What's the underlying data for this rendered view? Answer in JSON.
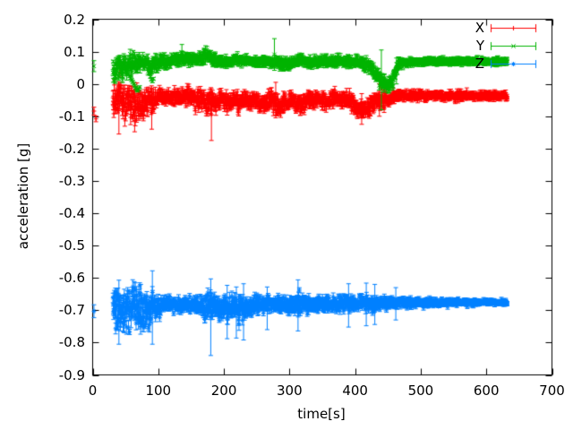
{
  "figure": {
    "background": "#ffffff",
    "text_color": "#000000",
    "axis_color": "#000000"
  },
  "chart_data": {
    "type": "scatter",
    "style": "points-with-errorbars",
    "title": "",
    "xlabel": "time[s]",
    "ylabel": "acceleration [g]",
    "xlim": [
      0,
      700
    ],
    "ylim": [
      -0.9,
      0.2
    ],
    "grid": "off",
    "x_ticks": [
      {
        "v": 0,
        "label": "0"
      },
      {
        "v": 100,
        "label": "100"
      },
      {
        "v": 200,
        "label": "200"
      },
      {
        "v": 300,
        "label": "300"
      },
      {
        "v": 400,
        "label": "400"
      },
      {
        "v": 500,
        "label": "500"
      },
      {
        "v": 600,
        "label": "600"
      },
      {
        "v": 700,
        "label": "700"
      }
    ],
    "y_ticks": [
      {
        "v": 0.2,
        "label": "0.2"
      },
      {
        "v": 0.1,
        "label": "0.1"
      },
      {
        "v": 0,
        "label": "0"
      },
      {
        "v": -0.1,
        "label": "-0.1"
      },
      {
        "v": -0.2,
        "label": "-0.2"
      },
      {
        "v": -0.3,
        "label": "-0.3"
      },
      {
        "v": -0.4,
        "label": "-0.4"
      },
      {
        "v": -0.5,
        "label": "-0.5"
      },
      {
        "v": -0.6,
        "label": "-0.6"
      },
      {
        "v": -0.7,
        "label": "-0.7"
      },
      {
        "v": -0.8,
        "label": "-0.8"
      },
      {
        "v": -0.9,
        "label": "-0.9"
      }
    ],
    "legend": {
      "position": "top-right",
      "box": false
    },
    "series": [
      {
        "name": "X",
        "color": "#ff0000",
        "marker": "plus",
        "seed": 11,
        "t_start": 31,
        "t_end": 632,
        "initial_points": [
          {
            "t": 2,
            "y": -0.084,
            "err": 0.012
          },
          {
            "t": 5,
            "y": -0.108,
            "err": 0.009
          }
        ],
        "envelope": [
          [
            31,
            -0.05,
            0.062
          ],
          [
            38,
            -0.045,
            0.07
          ],
          [
            44,
            -0.035,
            0.068
          ],
          [
            50,
            -0.06,
            0.06
          ],
          [
            57,
            -0.045,
            0.063
          ],
          [
            63,
            -0.055,
            0.065
          ],
          [
            70,
            -0.06,
            0.062
          ],
          [
            78,
            -0.055,
            0.06
          ],
          [
            85,
            -0.05,
            0.055
          ],
          [
            92,
            -0.048,
            0.045
          ],
          [
            98,
            -0.042,
            0.03
          ],
          [
            110,
            -0.04,
            0.026
          ],
          [
            125,
            -0.042,
            0.026
          ],
          [
            140,
            -0.04,
            0.028
          ],
          [
            150,
            -0.038,
            0.032
          ],
          [
            158,
            -0.05,
            0.038
          ],
          [
            165,
            -0.045,
            0.034
          ],
          [
            172,
            -0.055,
            0.038
          ],
          [
            181,
            -0.055,
            0.04
          ],
          [
            188,
            -0.052,
            0.036
          ],
          [
            196,
            -0.048,
            0.03
          ],
          [
            205,
            -0.058,
            0.036
          ],
          [
            213,
            -0.052,
            0.032
          ],
          [
            222,
            -0.06,
            0.038
          ],
          [
            230,
            -0.05,
            0.032
          ],
          [
            240,
            -0.055,
            0.034
          ],
          [
            248,
            -0.048,
            0.03
          ],
          [
            256,
            -0.062,
            0.038
          ],
          [
            264,
            -0.055,
            0.034
          ],
          [
            272,
            -0.05,
            0.032
          ],
          [
            280,
            -0.066,
            0.04
          ],
          [
            288,
            -0.07,
            0.04
          ],
          [
            296,
            -0.06,
            0.036
          ],
          [
            304,
            -0.052,
            0.03
          ],
          [
            312,
            -0.066,
            0.038
          ],
          [
            320,
            -0.06,
            0.034
          ],
          [
            328,
            -0.048,
            0.028
          ],
          [
            336,
            -0.052,
            0.03
          ],
          [
            345,
            -0.048,
            0.028
          ],
          [
            355,
            -0.052,
            0.03
          ],
          [
            365,
            -0.05,
            0.028
          ],
          [
            375,
            -0.046,
            0.026
          ],
          [
            385,
            -0.048,
            0.028
          ],
          [
            395,
            -0.06,
            0.034
          ],
          [
            403,
            -0.075,
            0.034
          ],
          [
            411,
            -0.085,
            0.03
          ],
          [
            418,
            -0.078,
            0.034
          ],
          [
            425,
            -0.06,
            0.034
          ],
          [
            432,
            -0.05,
            0.032
          ],
          [
            440,
            -0.055,
            0.036
          ],
          [
            448,
            -0.048,
            0.03
          ],
          [
            455,
            -0.042,
            0.022
          ],
          [
            465,
            -0.038,
            0.018
          ],
          [
            480,
            -0.036,
            0.017
          ],
          [
            520,
            -0.035,
            0.016
          ],
          [
            560,
            -0.036,
            0.016
          ],
          [
            600,
            -0.037,
            0.015
          ],
          [
            632,
            -0.037,
            0.015
          ]
        ],
        "extra_points": [],
        "error_events": [
          [
            40,
            -0.155,
            -0.01
          ],
          [
            64,
            -0.148,
            -0.02
          ],
          [
            90,
            -0.14,
            -0.015
          ],
          [
            181,
            -0.175,
            -0.015
          ],
          [
            279,
            -0.105,
            0.005
          ],
          [
            410,
            -0.125,
            -0.03
          ],
          [
            437,
            -0.1,
            0.0
          ]
        ]
      },
      {
        "name": "Y",
        "color": "#00b400",
        "marker": "cross",
        "seed": 22,
        "t_start": 31,
        "t_end": 632,
        "initial_points": [
          {
            "t": 2,
            "y": 0.055,
            "err": 0.017
          }
        ],
        "envelope": [
          [
            31,
            0.05,
            0.048
          ],
          [
            38,
            0.055,
            0.048
          ],
          [
            45,
            0.05,
            0.045
          ],
          [
            52,
            0.055,
            0.042
          ],
          [
            60,
            0.06,
            0.04
          ],
          [
            68,
            0.062,
            0.038
          ],
          [
            75,
            0.065,
            0.034
          ],
          [
            82,
            0.062,
            0.03
          ],
          [
            90,
            0.055,
            0.035
          ],
          [
            96,
            0.06,
            0.03
          ],
          [
            104,
            0.068,
            0.024
          ],
          [
            115,
            0.07,
            0.022
          ],
          [
            125,
            0.074,
            0.02
          ],
          [
            135,
            0.078,
            0.02
          ],
          [
            142,
            0.08,
            0.02
          ],
          [
            150,
            0.076,
            0.019
          ],
          [
            158,
            0.072,
            0.018
          ],
          [
            166,
            0.08,
            0.022
          ],
          [
            174,
            0.086,
            0.024
          ],
          [
            182,
            0.08,
            0.022
          ],
          [
            190,
            0.072,
            0.019
          ],
          [
            200,
            0.068,
            0.018
          ],
          [
            210,
            0.07,
            0.018
          ],
          [
            220,
            0.074,
            0.019
          ],
          [
            230,
            0.074,
            0.019
          ],
          [
            240,
            0.07,
            0.018
          ],
          [
            252,
            0.068,
            0.018
          ],
          [
            262,
            0.07,
            0.019
          ],
          [
            272,
            0.068,
            0.02
          ],
          [
            282,
            0.07,
            0.022
          ],
          [
            292,
            0.064,
            0.02
          ],
          [
            302,
            0.063,
            0.019
          ],
          [
            310,
            0.07,
            0.021
          ],
          [
            318,
            0.074,
            0.021
          ],
          [
            326,
            0.07,
            0.019
          ],
          [
            335,
            0.066,
            0.018
          ],
          [
            345,
            0.068,
            0.018
          ],
          [
            355,
            0.07,
            0.019
          ],
          [
            365,
            0.07,
            0.019
          ],
          [
            375,
            0.072,
            0.02
          ],
          [
            385,
            0.07,
            0.019
          ],
          [
            395,
            0.068,
            0.019
          ],
          [
            405,
            0.068,
            0.02
          ],
          [
            415,
            0.062,
            0.024
          ],
          [
            422,
            0.052,
            0.028
          ],
          [
            430,
            0.034,
            0.032
          ],
          [
            437,
            0.02,
            0.034
          ],
          [
            444,
            0.002,
            0.028
          ],
          [
            450,
            -0.008,
            0.024
          ],
          [
            455,
            0.005,
            0.026
          ],
          [
            460,
            0.03,
            0.026
          ],
          [
            465,
            0.055,
            0.02
          ],
          [
            472,
            0.065,
            0.016
          ],
          [
            485,
            0.068,
            0.014
          ],
          [
            510,
            0.07,
            0.013
          ],
          [
            550,
            0.07,
            0.012
          ],
          [
            590,
            0.07,
            0.012
          ],
          [
            632,
            0.07,
            0.012
          ]
        ],
        "extra_points": [
          [
            55,
            0.03
          ],
          [
            56.5,
            0.024
          ],
          [
            58,
            0.018
          ],
          [
            59.5,
            0.012
          ],
          [
            61,
            0.006
          ],
          [
            62.5,
            0.0
          ],
          [
            64,
            -0.006
          ],
          [
            65.5,
            -0.012
          ],
          [
            67,
            -0.017
          ],
          [
            68.5,
            -0.021
          ],
          [
            70,
            -0.016
          ],
          [
            71.5,
            -0.01
          ],
          [
            88,
            0.022
          ],
          [
            89.5,
            0.014
          ],
          [
            91,
            0.008
          ],
          [
            92.5,
            0.016
          ]
        ],
        "error_events": [
          [
            136,
            0.062,
            0.122
          ],
          [
            172,
            0.06,
            0.118
          ],
          [
            277,
            0.042,
            0.14
          ],
          [
            440,
            -0.08,
            0.105
          ],
          [
            463,
            0.0,
            0.08
          ]
        ]
      },
      {
        "name": "Z",
        "color": "#0080ff",
        "marker": "star",
        "seed": 33,
        "t_start": 31,
        "t_end": 632,
        "initial_points": [
          {
            "t": 2,
            "y": -0.703,
            "err": 0.02
          }
        ],
        "envelope": [
          [
            31,
            -0.695,
            0.075
          ],
          [
            38,
            -0.7,
            0.082
          ],
          [
            45,
            -0.698,
            0.085
          ],
          [
            52,
            -0.7,
            0.083
          ],
          [
            60,
            -0.698,
            0.085
          ],
          [
            68,
            -0.7,
            0.08
          ],
          [
            75,
            -0.695,
            0.08
          ],
          [
            82,
            -0.698,
            0.078
          ],
          [
            90,
            -0.695,
            0.072
          ],
          [
            97,
            -0.69,
            0.05
          ],
          [
            105,
            -0.686,
            0.036
          ],
          [
            115,
            -0.684,
            0.03
          ],
          [
            125,
            -0.684,
            0.027
          ],
          [
            135,
            -0.683,
            0.026
          ],
          [
            145,
            -0.684,
            0.026
          ],
          [
            155,
            -0.686,
            0.03
          ],
          [
            165,
            -0.688,
            0.042
          ],
          [
            172,
            -0.69,
            0.05
          ],
          [
            180,
            -0.69,
            0.052
          ],
          [
            188,
            -0.688,
            0.048
          ],
          [
            196,
            -0.69,
            0.05
          ],
          [
            205,
            -0.692,
            0.052
          ],
          [
            213,
            -0.69,
            0.048
          ],
          [
            222,
            -0.694,
            0.052
          ],
          [
            230,
            -0.69,
            0.048
          ],
          [
            238,
            -0.686,
            0.04
          ],
          [
            246,
            -0.684,
            0.034
          ],
          [
            255,
            -0.683,
            0.03
          ],
          [
            265,
            -0.683,
            0.028
          ],
          [
            275,
            -0.684,
            0.03
          ],
          [
            285,
            -0.683,
            0.032
          ],
          [
            295,
            -0.684,
            0.034
          ],
          [
            305,
            -0.68,
            0.038
          ],
          [
            315,
            -0.682,
            0.036
          ],
          [
            325,
            -0.683,
            0.034
          ],
          [
            335,
            -0.683,
            0.03
          ],
          [
            345,
            -0.68,
            0.03
          ],
          [
            355,
            -0.679,
            0.028
          ],
          [
            365,
            -0.682,
            0.028
          ],
          [
            375,
            -0.68,
            0.028
          ],
          [
            385,
            -0.679,
            0.03
          ],
          [
            395,
            -0.682,
            0.032
          ],
          [
            405,
            -0.68,
            0.03
          ],
          [
            415,
            -0.678,
            0.03
          ],
          [
            425,
            -0.682,
            0.028
          ],
          [
            435,
            -0.68,
            0.026
          ],
          [
            445,
            -0.678,
            0.024
          ],
          [
            455,
            -0.678,
            0.022
          ],
          [
            468,
            -0.678,
            0.02
          ],
          [
            482,
            -0.677,
            0.018
          ],
          [
            500,
            -0.677,
            0.016
          ],
          [
            520,
            -0.677,
            0.015
          ],
          [
            545,
            -0.676,
            0.013
          ],
          [
            570,
            -0.676,
            0.012
          ],
          [
            600,
            -0.676,
            0.01
          ],
          [
            632,
            -0.676,
            0.009
          ]
        ],
        "extra_points": [],
        "error_events": [
          [
            40,
            -0.805,
            -0.607
          ],
          [
            91,
            -0.805,
            -0.578
          ],
          [
            180,
            -0.84,
            -0.603
          ],
          [
            205,
            -0.788,
            -0.623
          ],
          [
            219,
            -0.786,
            -0.628
          ],
          [
            230,
            -0.792,
            -0.618
          ],
          [
            266,
            -0.76,
            -0.628
          ],
          [
            313,
            -0.764,
            -0.606
          ],
          [
            390,
            -0.752,
            -0.618
          ],
          [
            417,
            -0.748,
            -0.616
          ],
          [
            430,
            -0.744,
            -0.62
          ],
          [
            462,
            -0.73,
            -0.63
          ]
        ]
      }
    ]
  }
}
